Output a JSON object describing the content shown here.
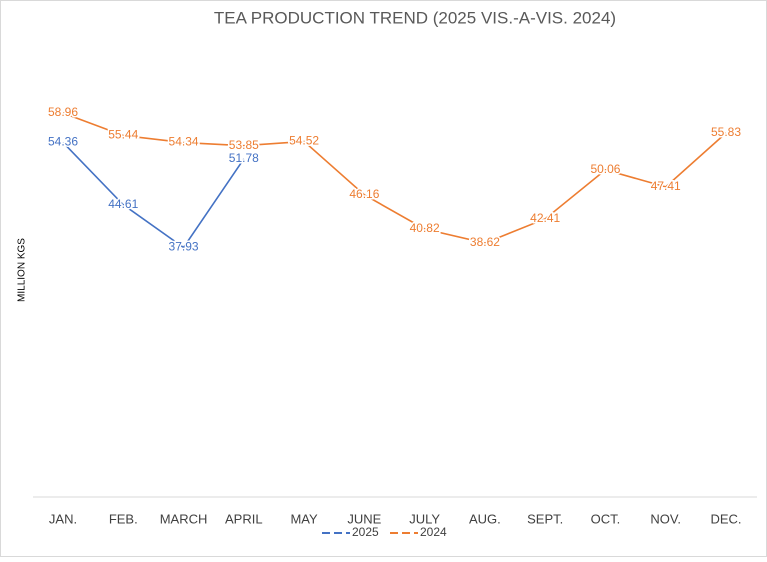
{
  "chart_data": {
    "type": "line",
    "title": "TEA PRODUCTION TREND (2025 VIS.-A-VIS. 2024)",
    "y_label": "MILLION KGS",
    "categories": [
      "JAN.",
      "FEB.",
      "MARCH",
      "APRIL",
      "MAY",
      "JUNE",
      "JULY",
      "AUG.",
      "SEPT.",
      "OCT.",
      "NOV.",
      "DEC."
    ],
    "series": [
      {
        "name": "2025",
        "color": "#4472c4",
        "values": [
          54.36,
          44.61,
          37.93,
          51.78,
          null,
          null,
          null,
          null,
          null,
          null,
          null,
          null
        ]
      },
      {
        "name": "2024",
        "color": "#ed7d31",
        "values": [
          58.96,
          55.44,
          54.34,
          53.85,
          54.52,
          46.16,
          40.82,
          38.62,
          42.41,
          50.06,
          47.41,
          55.83
        ]
      }
    ],
    "legend": "bottom"
  }
}
